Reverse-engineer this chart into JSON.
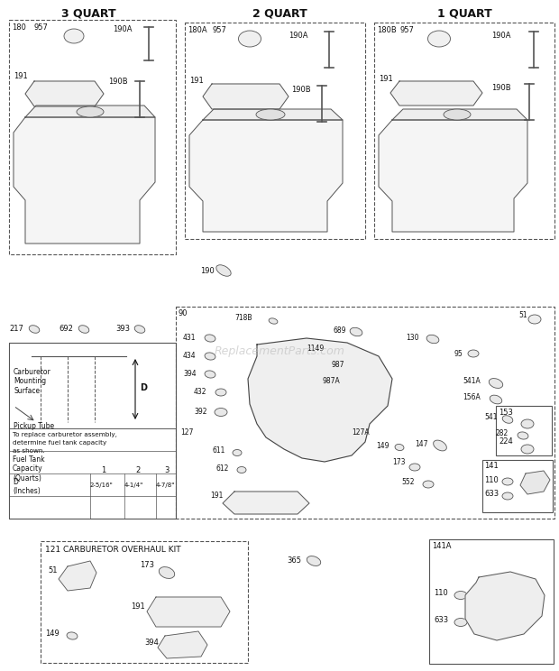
{
  "bg_color": "#ffffff",
  "text_color": "#111111",
  "border_color": "#666666",
  "section1_title": "3 QUART",
  "section2_title": "2 QUART",
  "section3_title": "1 QUART",
  "watermark": "ReplacementParts.com"
}
